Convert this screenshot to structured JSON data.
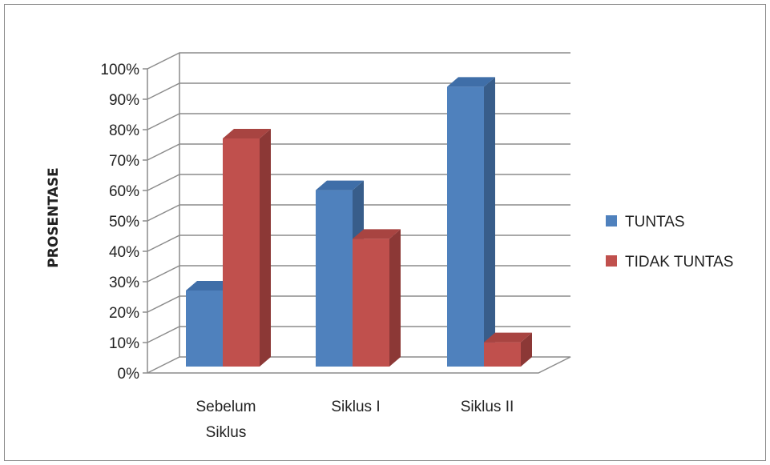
{
  "chart_data": {
    "type": "bar",
    "style": "3d-clustered-column",
    "title": "",
    "ylabel": "PROSENTASE",
    "xlabel": "",
    "categories": [
      [
        "Sebelum",
        "Siklus"
      ],
      [
        "Siklus I"
      ],
      [
        "Siklus II"
      ]
    ],
    "series": [
      {
        "name": "TUNTAS",
        "color": "#4f81bd",
        "side_color": "#385d8a",
        "top_color": "#3f6ea8",
        "values": [
          25,
          58,
          92
        ]
      },
      {
        "name": "TIDAK TUNTAS",
        "color": "#c0504d",
        "side_color": "#8c3836",
        "top_color": "#a84441",
        "values": [
          75,
          42,
          8
        ]
      }
    ],
    "ylim": [
      0,
      100
    ],
    "yticks": [
      "0%",
      "10%",
      "20%",
      "30%",
      "40%",
      "50%",
      "60%",
      "70%",
      "80%",
      "90%",
      "100%"
    ],
    "grid": true,
    "legend_position": "right"
  }
}
